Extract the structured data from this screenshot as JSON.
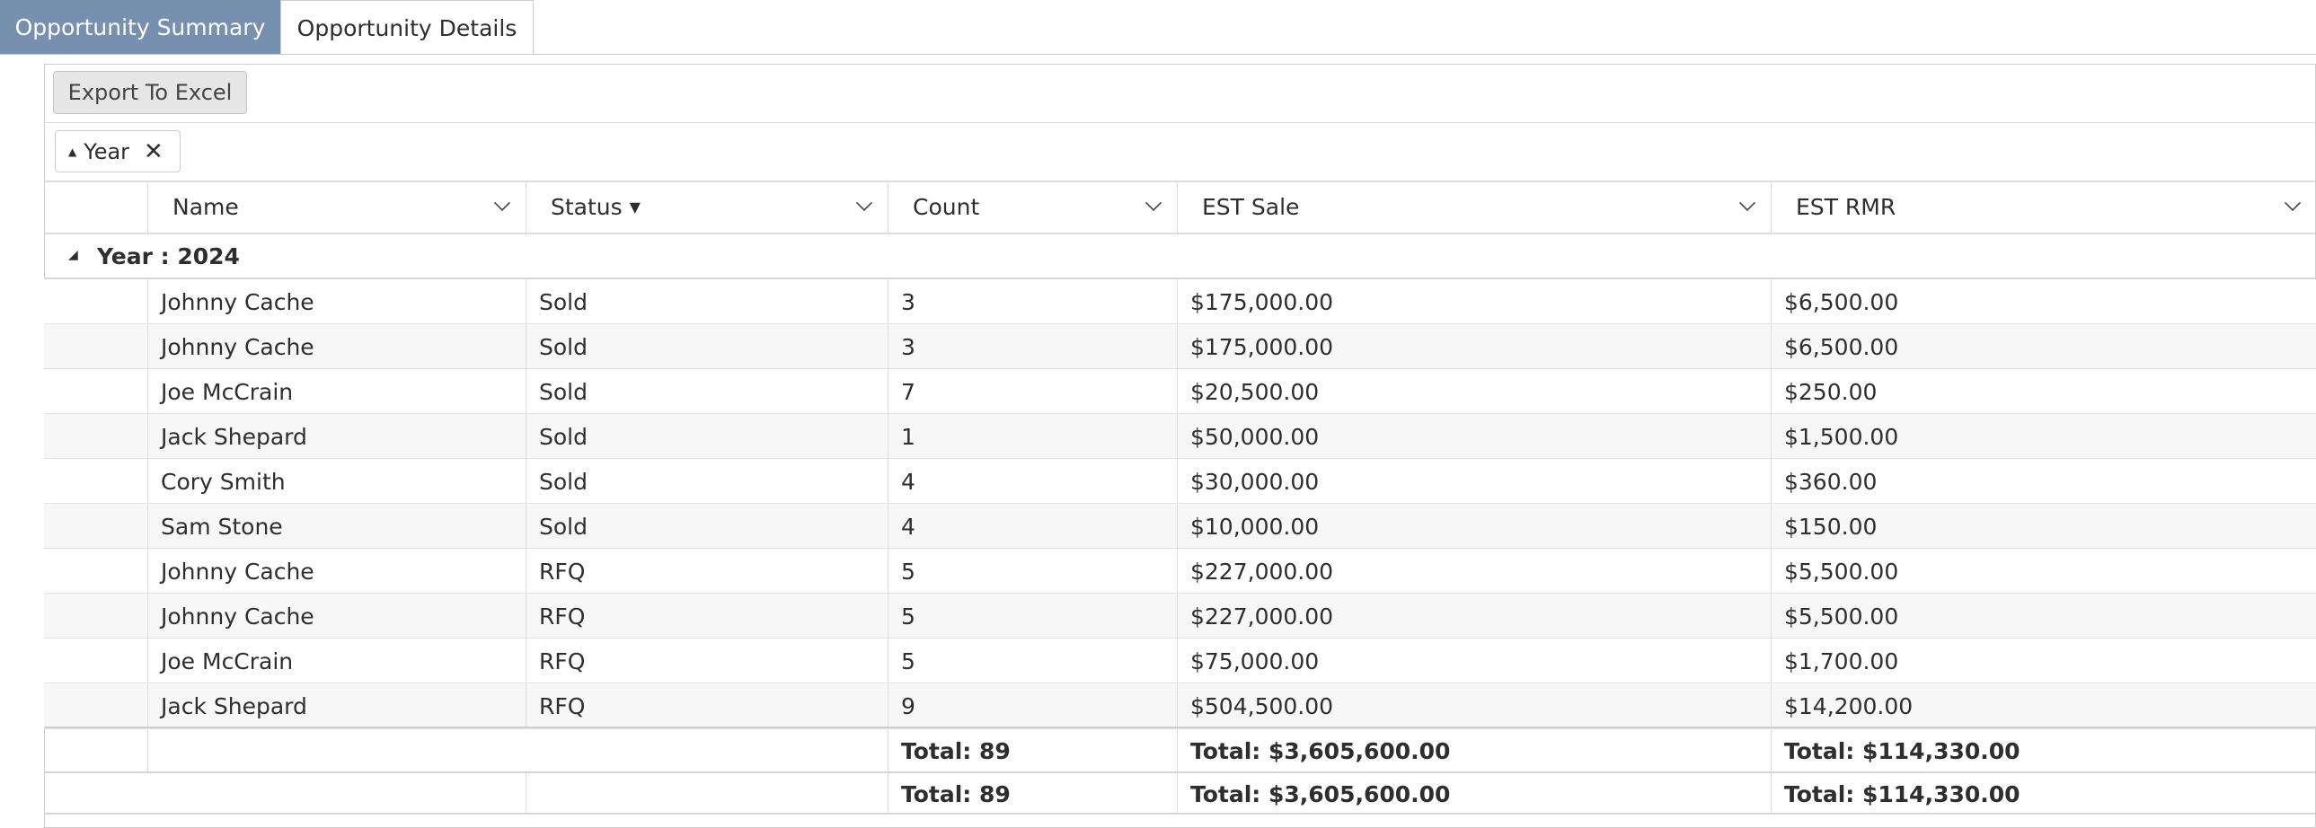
{
  "tabs": [
    "Opportunity Summary",
    "Opportunity Details"
  ],
  "toolbar": {
    "export_button": "Export To Excel"
  },
  "group_panel": {
    "chip": "Year"
  },
  "table": {
    "columns": [
      "Name",
      "Status",
      "Count",
      "EST Sale",
      "EST RMR"
    ],
    "group": "Year : 2024",
    "rows": [
      [
        "Johnny Cache",
        "Sold",
        "3",
        "$175,000.00",
        "$6,500.00"
      ],
      [
        "Johnny Cache",
        "Sold",
        "3",
        "$175,000.00",
        "$6,500.00"
      ],
      [
        "Joe McCrain",
        "Sold",
        "7",
        "$20,500.00",
        "$250.00"
      ],
      [
        "Jack Shepard",
        "Sold",
        "1",
        "$50,000.00",
        "$1,500.00"
      ],
      [
        "Cory Smith",
        "Sold",
        "4",
        "$30,000.00",
        "$360.00"
      ],
      [
        "Sam Stone",
        "Sold",
        "4",
        "$10,000.00",
        "$150.00"
      ],
      [
        "Johnny Cache",
        "RFQ",
        "5",
        "$227,000.00",
        "$5,500.00"
      ],
      [
        "Johnny Cache",
        "RFQ",
        "5",
        "$227,000.00",
        "$5,500.00"
      ],
      [
        "Joe McCrain",
        "RFQ",
        "5",
        "$75,000.00",
        "$1,700.00"
      ],
      [
        "Jack Shepard",
        "RFQ",
        "9",
        "$504,500.00",
        "$14,200.00"
      ]
    ],
    "group_footer": [
      "Total: 89",
      "Total: $3,605,600.00",
      "Total: $114,330.00"
    ],
    "footer": [
      "Total: 89",
      "Total: $3,605,600.00",
      "Total: $114,330.00"
    ]
  }
}
